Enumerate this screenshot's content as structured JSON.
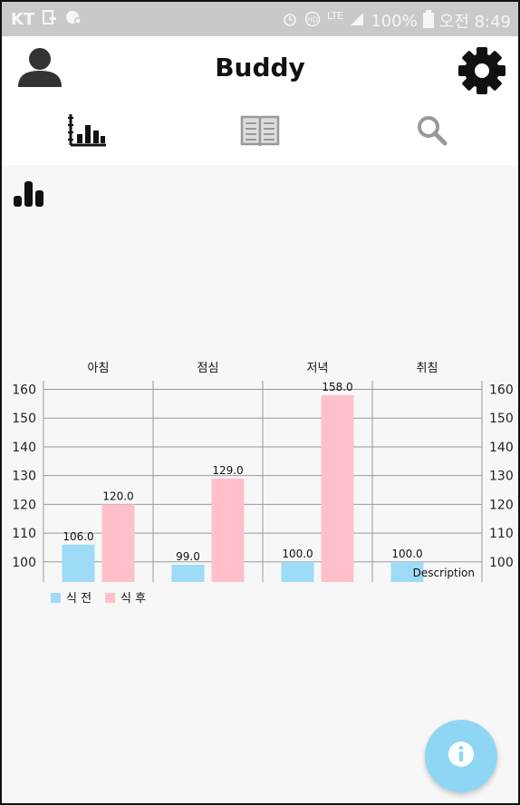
{
  "status_bar": {
    "carrier": "KT",
    "battery": "100%",
    "time": "오전 8:49",
    "network": "LTE"
  },
  "app_bar": {
    "title": "Buddy",
    "profile_icon": "person-icon",
    "settings_icon": "gear-icon"
  },
  "tabs": [
    {
      "icon": "bar-chart-icon",
      "selected": true
    },
    {
      "icon": "book-icon",
      "selected": false
    },
    {
      "icon": "search-icon",
      "selected": false
    }
  ],
  "colors": {
    "before_meal": "#9edbf7",
    "after_meal": "#ffc0ca",
    "fab": "#8fd6f4",
    "status_bar": "#c9c9c9"
  },
  "chart_data": {
    "type": "bar",
    "categories": [
      "아침",
      "점심",
      "저녁",
      "취침"
    ],
    "series": [
      {
        "name": "식 전",
        "values": [
          106.0,
          99.0,
          100.0,
          100.0
        ]
      },
      {
        "name": "식 후",
        "values": [
          120.0,
          129.0,
          158.0,
          null
        ]
      }
    ],
    "value_labels": [
      [
        "106.0",
        "99.0",
        "100.0",
        "100.0"
      ],
      [
        "120.0",
        "129.0",
        "158.0",
        ""
      ]
    ],
    "y_ticks": [
      "100",
      "110",
      "120",
      "130",
      "140",
      "150",
      "160"
    ],
    "ylim": [
      93,
      163
    ],
    "y_axis_both_sides": true,
    "grid": true,
    "legend": "bottom-left",
    "description": "Description"
  },
  "fab": {
    "icon": "info-icon"
  }
}
